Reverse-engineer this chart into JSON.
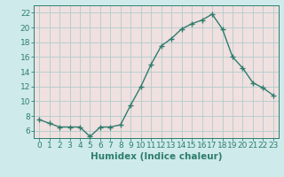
{
  "x": [
    0,
    1,
    2,
    3,
    4,
    5,
    6,
    7,
    8,
    9,
    10,
    11,
    12,
    13,
    14,
    15,
    16,
    17,
    18,
    19,
    20,
    21,
    22,
    23
  ],
  "y": [
    7.5,
    7.0,
    6.5,
    6.5,
    6.5,
    5.2,
    6.5,
    6.5,
    6.8,
    9.5,
    12.0,
    15.0,
    17.5,
    18.5,
    19.8,
    20.5,
    21.0,
    21.8,
    19.8,
    16.0,
    14.5,
    12.5,
    11.8,
    10.8
  ],
  "line_color": "#2e7d6e",
  "marker": "+",
  "marker_size": 4,
  "bg_color": "#ceeaea",
  "grid_color": "#b0cccc",
  "xlabel": "Humidex (Indice chaleur)",
  "ylim": [
    5,
    23
  ],
  "xlim": [
    -0.5,
    23.5
  ],
  "yticks": [
    6,
    8,
    10,
    12,
    14,
    16,
    18,
    20,
    22
  ],
  "xticks": [
    0,
    1,
    2,
    3,
    4,
    5,
    6,
    7,
    8,
    9,
    10,
    11,
    12,
    13,
    14,
    15,
    16,
    17,
    18,
    19,
    20,
    21,
    22,
    23
  ],
  "tick_color": "#2e7d6e",
  "label_color": "#2e7d6e",
  "spine_color": "#2e7d6e",
  "axis_bg": "#f0e0e0",
  "xlabel_fontsize": 7.5,
  "tick_fontsize": 6.5
}
